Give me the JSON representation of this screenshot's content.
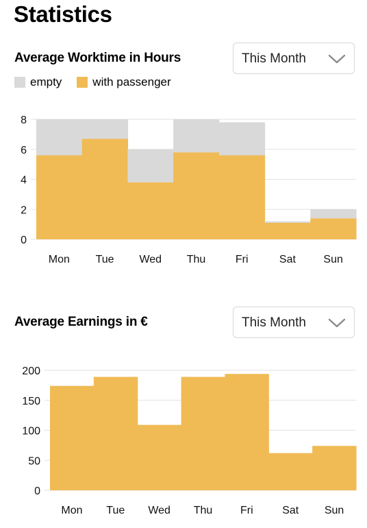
{
  "page_title": "Statistics",
  "worktime": {
    "title": "Average Worktime in Hours",
    "dropdown_value": "This Month",
    "legend": [
      "empty",
      "with passenger"
    ]
  },
  "earnings": {
    "title": "Average Earnings in €",
    "dropdown_value": "This Month"
  },
  "colors": {
    "empty": "#d9d9d9",
    "with_passenger": "#f0bb55",
    "grid": "#e2e2e2"
  },
  "chart_data": [
    {
      "type": "bar",
      "stacked": true,
      "title": "Average Worktime in Hours",
      "categories": [
        "Mon",
        "Tue",
        "Wed",
        "Thu",
        "Fri",
        "Sat",
        "Sun"
      ],
      "series": [
        {
          "name": "with passenger",
          "values": [
            5.6,
            6.7,
            3.8,
            5.8,
            5.6,
            1.1,
            1.4
          ]
        },
        {
          "name": "empty",
          "values": [
            2.4,
            1.3,
            2.2,
            2.2,
            2.2,
            0.1,
            0.6
          ]
        }
      ],
      "yticks": [
        0,
        2,
        4,
        6,
        8
      ],
      "ylim": [
        0,
        8
      ],
      "grid": true,
      "legend_position": "top-left"
    },
    {
      "type": "bar",
      "title": "Average Earnings in €",
      "categories": [
        "Mon",
        "Tue",
        "Wed",
        "Thu",
        "Fri",
        "Sat",
        "Sun"
      ],
      "values": [
        174,
        189,
        109,
        189,
        194,
        62,
        74
      ],
      "yticks": [
        0,
        50,
        100,
        150,
        200
      ],
      "ylim": [
        0,
        200
      ],
      "grid": true
    }
  ]
}
